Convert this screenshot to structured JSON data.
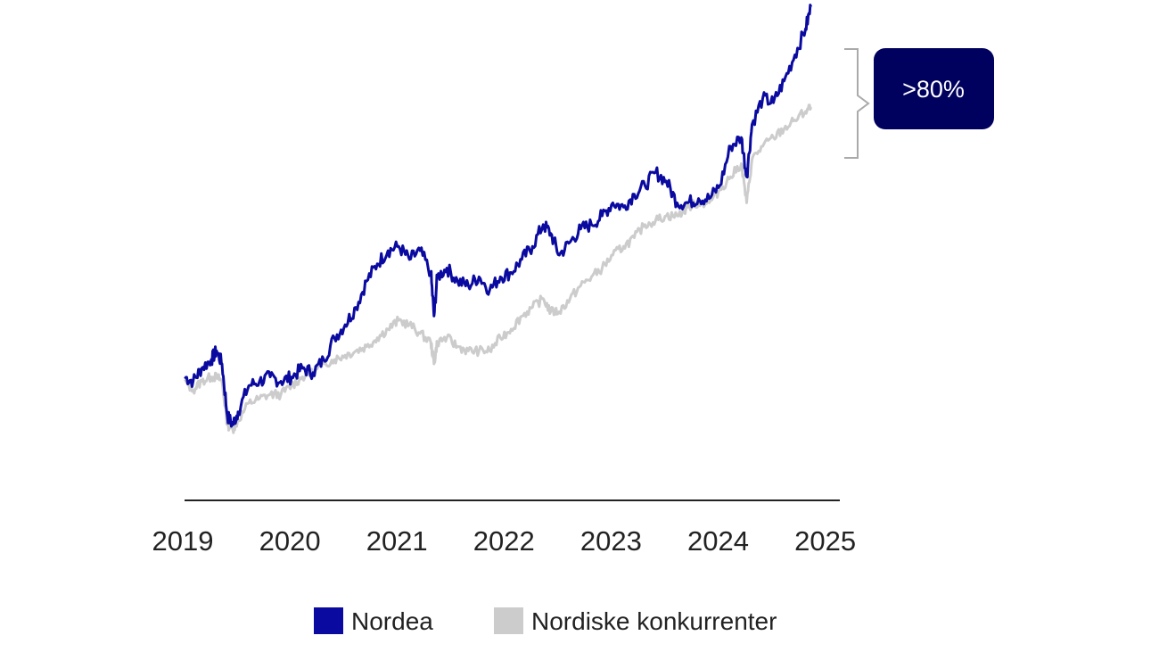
{
  "chart_data": {
    "type": "line",
    "title": "",
    "xlabel": "",
    "ylabel": "",
    "x_ticks": [
      "2019",
      "2020",
      "2021",
      "2022",
      "2023",
      "2024",
      "2025"
    ],
    "xlim": [
      2019.0,
      2025.12
    ],
    "ylim": [
      0,
      100
    ],
    "grid": false,
    "legend_position": "bottom",
    "colors": {
      "nordea": "#0a0aa0",
      "peers": "#cccccc",
      "badge": "#00005e",
      "bracket": "#aaaaaa",
      "axis": "#222222"
    },
    "annotation": ">80%",
    "series": [
      {
        "name": "Nordea",
        "points": [
          [
            2019.0,
            22
          ],
          [
            2019.08,
            21
          ],
          [
            2019.16,
            24
          ],
          [
            2019.25,
            26
          ],
          [
            2019.3,
            28
          ],
          [
            2019.35,
            25
          ],
          [
            2019.4,
            13
          ],
          [
            2019.45,
            11
          ],
          [
            2019.5,
            14
          ],
          [
            2019.6,
            20
          ],
          [
            2019.7,
            21
          ],
          [
            2019.8,
            22
          ],
          [
            2019.9,
            21
          ],
          [
            2020.0,
            22
          ],
          [
            2020.1,
            24
          ],
          [
            2020.2,
            23
          ],
          [
            2020.3,
            26
          ],
          [
            2020.4,
            31
          ],
          [
            2020.5,
            34
          ],
          [
            2020.6,
            38
          ],
          [
            2020.7,
            44
          ],
          [
            2020.8,
            48
          ],
          [
            2020.9,
            51
          ],
          [
            2021.0,
            52
          ],
          [
            2021.1,
            49
          ],
          [
            2021.2,
            51
          ],
          [
            2021.3,
            46
          ],
          [
            2021.33,
            36
          ],
          [
            2021.36,
            45
          ],
          [
            2021.45,
            47
          ],
          [
            2021.55,
            44
          ],
          [
            2021.65,
            43
          ],
          [
            2021.75,
            45
          ],
          [
            2021.85,
            42
          ],
          [
            2021.95,
            45
          ],
          [
            2022.05,
            46
          ],
          [
            2022.15,
            49
          ],
          [
            2022.25,
            52
          ],
          [
            2022.35,
            57
          ],
          [
            2022.42,
            55
          ],
          [
            2022.5,
            50
          ],
          [
            2022.6,
            53
          ],
          [
            2022.7,
            56
          ],
          [
            2022.8,
            57
          ],
          [
            2022.9,
            59
          ],
          [
            2023.0,
            62
          ],
          [
            2023.1,
            61
          ],
          [
            2023.2,
            64
          ],
          [
            2023.3,
            66
          ],
          [
            2023.4,
            69
          ],
          [
            2023.5,
            67
          ],
          [
            2023.6,
            62
          ],
          [
            2023.7,
            62
          ],
          [
            2023.8,
            63
          ],
          [
            2023.9,
            63
          ],
          [
            2024.0,
            66
          ],
          [
            2024.1,
            75
          ],
          [
            2024.2,
            77
          ],
          [
            2024.25,
            68
          ],
          [
            2024.3,
            80
          ],
          [
            2024.4,
            86
          ],
          [
            2024.5,
            85
          ],
          [
            2024.6,
            90
          ],
          [
            2024.7,
            96
          ],
          [
            2024.8,
            102
          ],
          [
            2024.85,
            107
          ]
        ]
      },
      {
        "name": "Nordiske konkurrenter",
        "points": [
          [
            2019.0,
            21
          ],
          [
            2019.08,
            19
          ],
          [
            2019.16,
            21
          ],
          [
            2019.25,
            22
          ],
          [
            2019.3,
            22
          ],
          [
            2019.35,
            21
          ],
          [
            2019.4,
            11
          ],
          [
            2019.45,
            10
          ],
          [
            2019.5,
            12
          ],
          [
            2019.6,
            16
          ],
          [
            2019.7,
            17
          ],
          [
            2019.8,
            18
          ],
          [
            2019.9,
            18
          ],
          [
            2020.0,
            20
          ],
          [
            2020.1,
            22
          ],
          [
            2020.2,
            23
          ],
          [
            2020.3,
            25
          ],
          [
            2020.4,
            26
          ],
          [
            2020.5,
            27
          ],
          [
            2020.6,
            28
          ],
          [
            2020.7,
            29
          ],
          [
            2020.8,
            31
          ],
          [
            2020.9,
            33
          ],
          [
            2021.0,
            35
          ],
          [
            2021.1,
            34
          ],
          [
            2021.2,
            32
          ],
          [
            2021.3,
            30
          ],
          [
            2021.33,
            25
          ],
          [
            2021.36,
            30
          ],
          [
            2021.45,
            31
          ],
          [
            2021.55,
            29
          ],
          [
            2021.65,
            28
          ],
          [
            2021.75,
            28
          ],
          [
            2021.85,
            28
          ],
          [
            2021.95,
            31
          ],
          [
            2022.05,
            33
          ],
          [
            2022.15,
            36
          ],
          [
            2022.25,
            38
          ],
          [
            2022.35,
            40
          ],
          [
            2022.42,
            37
          ],
          [
            2022.5,
            37
          ],
          [
            2022.6,
            40
          ],
          [
            2022.7,
            43
          ],
          [
            2022.8,
            45
          ],
          [
            2022.9,
            47
          ],
          [
            2023.0,
            50
          ],
          [
            2023.1,
            52
          ],
          [
            2023.2,
            54
          ],
          [
            2023.3,
            57
          ],
          [
            2023.4,
            58
          ],
          [
            2023.5,
            59
          ],
          [
            2023.6,
            59
          ],
          [
            2023.7,
            61
          ],
          [
            2023.8,
            62
          ],
          [
            2023.9,
            62
          ],
          [
            2024.0,
            65
          ],
          [
            2024.1,
            68
          ],
          [
            2024.2,
            71
          ],
          [
            2024.25,
            62
          ],
          [
            2024.3,
            72
          ],
          [
            2024.4,
            75
          ],
          [
            2024.5,
            77
          ],
          [
            2024.6,
            79
          ],
          [
            2024.7,
            81
          ],
          [
            2024.8,
            83
          ],
          [
            2024.85,
            84
          ]
        ]
      }
    ]
  },
  "legend": [
    {
      "label": "Nordea",
      "color": "#0a0aa0"
    },
    {
      "label": "Nordiske konkurrenter",
      "color": "#cccccc"
    }
  ]
}
